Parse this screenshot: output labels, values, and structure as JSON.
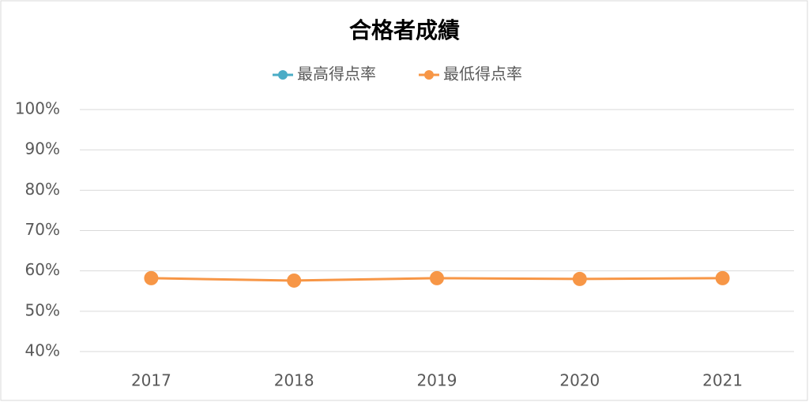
{
  "chart_data": {
    "type": "line",
    "title": "合格者成績",
    "categories": [
      "2017",
      "2018",
      "2019",
      "2020",
      "2021"
    ],
    "series": [
      {
        "name": "最高得点率",
        "color": "#4bacc6",
        "values": [
          null,
          null,
          null,
          null,
          null
        ]
      },
      {
        "name": "最低得点率",
        "color": "#f79646",
        "values": [
          58.2,
          57.6,
          58.2,
          58.0,
          58.2
        ]
      }
    ],
    "ylim": [
      40,
      100
    ],
    "yticks": [
      {
        "value": 40,
        "label": "40%"
      },
      {
        "value": 50,
        "label": "50%"
      },
      {
        "value": 60,
        "label": "60%"
      },
      {
        "value": 70,
        "label": "70%"
      },
      {
        "value": 80,
        "label": "80%"
      },
      {
        "value": 90,
        "label": "90%"
      },
      {
        "value": 100,
        "label": "100%"
      }
    ],
    "grid": true,
    "legend": "top"
  }
}
